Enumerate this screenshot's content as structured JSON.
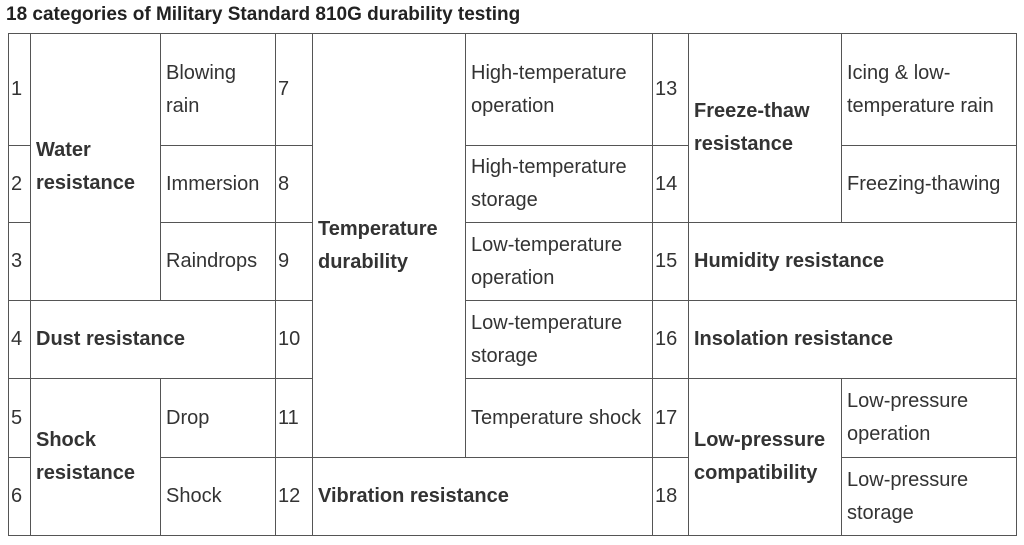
{
  "title": "18 categories of Military Standard 810G durability testing",
  "table": {
    "rows": [
      [
        1,
        "Water resistance",
        "Blowing rain",
        7,
        "Temperature durability",
        "High-temperature operation",
        13,
        "Freeze-thaw resistance",
        "Icing & low-temperature rain"
      ],
      [
        2,
        "Immersion",
        8,
        "High-temperature storage",
        14,
        "Freezing-thawing"
      ],
      [
        3,
        "Raindrops",
        9,
        "Low-temperature operation",
        15,
        "Humidity resistance"
      ],
      [
        4,
        "Dust resistance",
        10,
        "Low-temperature storage",
        16,
        "Insolation resistance"
      ],
      [
        5,
        "Shock resistance",
        "Drop",
        11,
        "Temperature shock",
        17,
        "Low-pressure compatibility",
        "Low-pressure operation"
      ],
      [
        6,
        "Shock",
        12,
        "Vibration resistance",
        18,
        "Low-pressure storage"
      ]
    ]
  }
}
